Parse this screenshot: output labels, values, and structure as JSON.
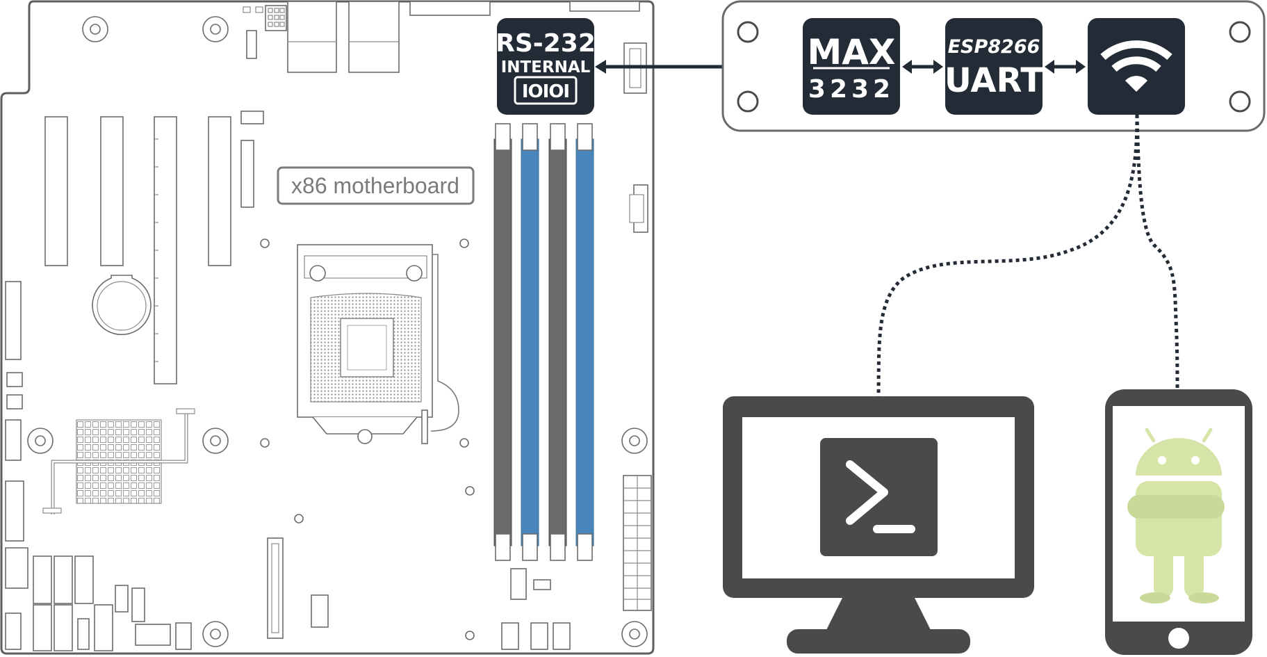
{
  "motherboard": {
    "label": "x86 motherboard"
  },
  "rs232": {
    "line1": "RS-232",
    "line2": "INTERNAL",
    "connector_text": "IOIOI"
  },
  "max3232": {
    "line1": "MAX",
    "line2": "3232"
  },
  "esp": {
    "line1": "ESP8266",
    "line2": "UART"
  },
  "wifi": {
    "icon": "wifi-icon"
  },
  "terminal": {
    "icon": "terminal-prompt-icon"
  },
  "phone": {
    "icon": "android-robot-icon"
  },
  "colors": {
    "chip": "#222b36",
    "ram_blue": "#4a86bb",
    "ram_gray": "#6a6a6a",
    "device": "#4a4a4a",
    "android": "#c9dc8c"
  }
}
